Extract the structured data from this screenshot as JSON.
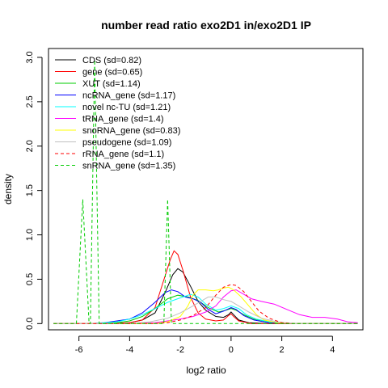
{
  "chart_data": {
    "type": "line",
    "title": "number read ratio exo2D1 in/exo2D1 IP",
    "xlabel": "log2 ratio",
    "ylabel": "density",
    "xlim": [
      -7.2,
      5.2
    ],
    "ylim": [
      -0.07,
      3.1
    ],
    "x_ticks": [
      -6,
      -4,
      -2,
      0,
      2,
      4
    ],
    "y_ticks": [
      0.0,
      0.5,
      1.0,
      1.5,
      2.0,
      2.5,
      3.0
    ],
    "x_tick_labels": [
      "-6",
      "-4",
      "-2",
      "0",
      "2",
      "4"
    ],
    "y_tick_labels": [
      "0.0",
      "0.5",
      "1.0",
      "1.5",
      "2.0",
      "2.5",
      "3.0"
    ],
    "legend_position": "top-left",
    "grid": false,
    "series": [
      {
        "name": "CDS (sd=0.82)",
        "color": "#000000",
        "dash": "solid",
        "points": [
          [
            -7,
            0
          ],
          [
            -5,
            0
          ],
          [
            -4,
            0.01
          ],
          [
            -3.5,
            0.04
          ],
          [
            -3,
            0.12
          ],
          [
            -2.6,
            0.35
          ],
          [
            -2.3,
            0.55
          ],
          [
            -2.1,
            0.62
          ],
          [
            -1.9,
            0.58
          ],
          [
            -1.6,
            0.42
          ],
          [
            -1.3,
            0.25
          ],
          [
            -1,
            0.15
          ],
          [
            -0.6,
            0.08
          ],
          [
            -0.3,
            0.07
          ],
          [
            -0.1,
            0.1
          ],
          [
            0,
            0.13
          ],
          [
            0.1,
            0.1
          ],
          [
            0.3,
            0.04
          ],
          [
            0.7,
            0.01
          ],
          [
            1.5,
            0
          ],
          [
            5,
            0
          ]
        ]
      },
      {
        "name": "gene (sd=0.65)",
        "color": "#ff0000",
        "dash": "solid",
        "points": [
          [
            -7,
            0
          ],
          [
            -5,
            0
          ],
          [
            -4,
            0.01
          ],
          [
            -3.5,
            0.04
          ],
          [
            -3,
            0.18
          ],
          [
            -2.7,
            0.45
          ],
          [
            -2.4,
            0.72
          ],
          [
            -2.25,
            0.82
          ],
          [
            -2.1,
            0.78
          ],
          [
            -1.9,
            0.6
          ],
          [
            -1.6,
            0.3
          ],
          [
            -1.3,
            0.12
          ],
          [
            -1,
            0.05
          ],
          [
            -0.6,
            0.03
          ],
          [
            -0.3,
            0.04
          ],
          [
            -0.1,
            0.09
          ],
          [
            0,
            0.11
          ],
          [
            0.1,
            0.08
          ],
          [
            0.3,
            0.03
          ],
          [
            0.8,
            0
          ],
          [
            5,
            0
          ]
        ]
      },
      {
        "name": "XUT (sd=1.14)",
        "color": "#00cc00",
        "dash": "solid",
        "points": [
          [
            -7,
            0
          ],
          [
            -5,
            0
          ],
          [
            -4.5,
            0.01
          ],
          [
            -4,
            0.03
          ],
          [
            -3.5,
            0.08
          ],
          [
            -3,
            0.17
          ],
          [
            -2.5,
            0.28
          ],
          [
            -2.1,
            0.32
          ],
          [
            -1.7,
            0.3
          ],
          [
            -1.3,
            0.26
          ],
          [
            -0.9,
            0.18
          ],
          [
            -0.5,
            0.13
          ],
          [
            -0.2,
            0.15
          ],
          [
            0,
            0.17
          ],
          [
            0.2,
            0.15
          ],
          [
            0.5,
            0.1
          ],
          [
            0.9,
            0.05
          ],
          [
            1.5,
            0.02
          ],
          [
            2.5,
            0
          ],
          [
            5,
            0
          ]
        ]
      },
      {
        "name": "ncRNA_gene (sd=1.17)",
        "color": "#0000ff",
        "dash": "solid",
        "points": [
          [
            -7,
            0
          ],
          [
            -5.5,
            0
          ],
          [
            -5,
            0.01
          ],
          [
            -4,
            0.05
          ],
          [
            -3.5,
            0.12
          ],
          [
            -3,
            0.24
          ],
          [
            -2.6,
            0.35
          ],
          [
            -2.35,
            0.38
          ],
          [
            -2.1,
            0.36
          ],
          [
            -1.8,
            0.3
          ],
          [
            -1.5,
            0.28
          ],
          [
            -1.2,
            0.24
          ],
          [
            -0.9,
            0.16
          ],
          [
            -0.6,
            0.11
          ],
          [
            -0.3,
            0.14
          ],
          [
            0,
            0.18
          ],
          [
            0.2,
            0.16
          ],
          [
            0.5,
            0.09
          ],
          [
            0.9,
            0.04
          ],
          [
            1.5,
            0.01
          ],
          [
            2.5,
            0
          ],
          [
            5,
            0
          ]
        ]
      },
      {
        "name": "novel nc-TU (sd=1.21)",
        "color": "#00ffff",
        "dash": "solid",
        "points": [
          [
            -7,
            0
          ],
          [
            -5.5,
            0
          ],
          [
            -5,
            0.01
          ],
          [
            -4.5,
            0.02
          ],
          [
            -4,
            0.05
          ],
          [
            -3.5,
            0.1
          ],
          [
            -3,
            0.17
          ],
          [
            -2.5,
            0.24
          ],
          [
            -2,
            0.29
          ],
          [
            -1.6,
            0.33
          ],
          [
            -1.3,
            0.3
          ],
          [
            -1,
            0.22
          ],
          [
            -0.6,
            0.15
          ],
          [
            -0.3,
            0.17
          ],
          [
            0,
            0.2
          ],
          [
            0.3,
            0.17
          ],
          [
            0.6,
            0.1
          ],
          [
            1,
            0.05
          ],
          [
            1.5,
            0.02
          ],
          [
            2.5,
            0
          ],
          [
            5,
            0
          ]
        ]
      },
      {
        "name": "tRNA_gene (sd=1.4)",
        "color": "#ff00ff",
        "dash": "solid",
        "points": [
          [
            -7,
            0
          ],
          [
            -4,
            0
          ],
          [
            -3,
            0.01
          ],
          [
            -2.5,
            0.03
          ],
          [
            -2,
            0.05
          ],
          [
            -1.5,
            0.08
          ],
          [
            -1,
            0.13
          ],
          [
            -0.6,
            0.2
          ],
          [
            -0.3,
            0.3
          ],
          [
            0,
            0.37
          ],
          [
            0.2,
            0.38
          ],
          [
            0.5,
            0.33
          ],
          [
            0.8,
            0.28
          ],
          [
            1.2,
            0.25
          ],
          [
            1.7,
            0.22
          ],
          [
            2.2,
            0.16
          ],
          [
            2.7,
            0.1
          ],
          [
            3.2,
            0.07
          ],
          [
            3.7,
            0.07
          ],
          [
            4.2,
            0.05
          ],
          [
            4.6,
            0.02
          ],
          [
            5,
            0.01
          ]
        ]
      },
      {
        "name": "snoRNA_gene (sd=0.83)",
        "color": "#ffff00",
        "dash": "solid",
        "points": [
          [
            -7,
            0
          ],
          [
            -3,
            0
          ],
          [
            -2.5,
            0.02
          ],
          [
            -2,
            0.08
          ],
          [
            -1.7,
            0.2
          ],
          [
            -1.5,
            0.32
          ],
          [
            -1.3,
            0.38
          ],
          [
            -1,
            0.38
          ],
          [
            -0.7,
            0.37
          ],
          [
            -0.5,
            0.38
          ],
          [
            -0.3,
            0.4
          ],
          [
            -0.1,
            0.41
          ],
          [
            0.1,
            0.38
          ],
          [
            0.4,
            0.3
          ],
          [
            0.7,
            0.2
          ],
          [
            1,
            0.1
          ],
          [
            1.3,
            0.04
          ],
          [
            1.8,
            0.01
          ],
          [
            2.5,
            0
          ],
          [
            5,
            0
          ]
        ]
      },
      {
        "name": "pseudogene (sd=1.09)",
        "color": "#c0c0c0",
        "dash": "solid",
        "points": [
          [
            -7,
            0
          ],
          [
            -4,
            0
          ],
          [
            -3.2,
            0.02
          ],
          [
            -2.5,
            0.06
          ],
          [
            -2,
            0.12
          ],
          [
            -1.5,
            0.2
          ],
          [
            -1.2,
            0.25
          ],
          [
            -0.9,
            0.3
          ],
          [
            -0.6,
            0.3
          ],
          [
            -0.3,
            0.27
          ],
          [
            0,
            0.25
          ],
          [
            0.3,
            0.2
          ],
          [
            0.7,
            0.13
          ],
          [
            1.2,
            0.06
          ],
          [
            1.8,
            0.02
          ],
          [
            2.5,
            0
          ],
          [
            5,
            0
          ]
        ]
      },
      {
        "name": "rRNA_gene (sd=1.1)",
        "color": "#ff0000",
        "dash": "dashed",
        "points": [
          [
            -7,
            0
          ],
          [
            -3,
            0
          ],
          [
            -2.5,
            0.01
          ],
          [
            -2,
            0.04
          ],
          [
            -1.5,
            0.09
          ],
          [
            -1,
            0.18
          ],
          [
            -0.6,
            0.32
          ],
          [
            -0.3,
            0.41
          ],
          [
            0,
            0.44
          ],
          [
            0.2,
            0.43
          ],
          [
            0.5,
            0.36
          ],
          [
            0.8,
            0.25
          ],
          [
            1.1,
            0.14
          ],
          [
            1.5,
            0.06
          ],
          [
            2,
            0.01
          ],
          [
            2.5,
            0
          ],
          [
            5,
            0
          ]
        ]
      },
      {
        "name": "snRNA_gene (sd=1.35)",
        "color": "#00cc00",
        "dash": "dashed",
        "points": [
          [
            -7,
            0
          ],
          [
            -6.1,
            0
          ],
          [
            -5.85,
            1.4
          ],
          [
            -5.6,
            0
          ],
          [
            -5.55,
            0
          ],
          [
            -5.38,
            2.97
          ],
          [
            -5.2,
            0
          ],
          [
            -3,
            0
          ],
          [
            -2.65,
            0
          ],
          [
            -2.5,
            1.4
          ],
          [
            -2.35,
            0
          ],
          [
            5,
            0
          ]
        ]
      }
    ]
  }
}
